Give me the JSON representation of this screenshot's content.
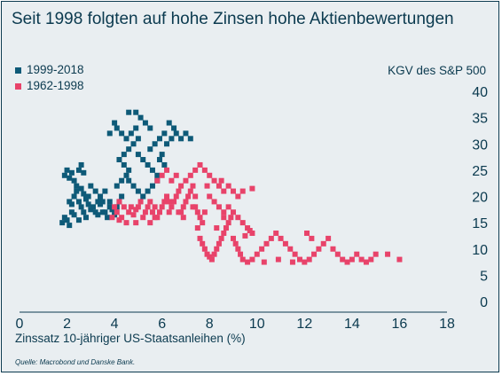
{
  "title": "Seit 1998 folgten auf hohe Zinsen hohe Aktienbewertungen",
  "source": "Quelle: Macrobond und Danske Bank.",
  "colors": {
    "series_1999_2018": "#0e5a78",
    "series_1962_1998": "#e8436a",
    "text": "#0b3a4f",
    "background": "#e9eef1"
  },
  "chart_data": {
    "type": "scatter",
    "xlabel": "Zinssatz 10-jähriger US-Staatsanleihen (%)",
    "ylabel": "KGV des S&P 500",
    "xlim": [
      0,
      18
    ],
    "ylim": [
      0,
      40
    ],
    "xticks": [
      0,
      2,
      4,
      6,
      8,
      10,
      12,
      14,
      16,
      18
    ],
    "yticks": [
      0,
      5,
      10,
      15,
      20,
      25,
      30,
      35,
      40
    ],
    "grid": false,
    "legend_position": "top-left",
    "series": [
      {
        "name": "1999-2018",
        "points": [
          [
            1.8,
            15
          ],
          [
            1.9,
            16
          ],
          [
            2.0,
            15.5
          ],
          [
            2.1,
            14.5
          ],
          [
            2.2,
            17
          ],
          [
            1.9,
            24
          ],
          [
            2.0,
            25
          ],
          [
            2.1,
            23.5
          ],
          [
            2.2,
            24.5
          ],
          [
            2.3,
            23
          ],
          [
            2.4,
            22
          ],
          [
            2.3,
            20
          ],
          [
            2.2,
            18.5
          ],
          [
            2.5,
            19
          ],
          [
            2.6,
            18
          ],
          [
            2.7,
            17
          ],
          [
            2.8,
            16
          ],
          [
            2.5,
            25
          ],
          [
            2.6,
            26
          ],
          [
            2.7,
            24.5
          ],
          [
            2.4,
            21
          ],
          [
            2.6,
            21.5
          ],
          [
            2.8,
            19.5
          ],
          [
            2.9,
            18.5
          ],
          [
            3.0,
            17.5
          ],
          [
            2.1,
            19
          ],
          [
            2.3,
            16.5
          ],
          [
            2.5,
            15.5
          ],
          [
            2.7,
            20.5
          ],
          [
            2.9,
            20
          ],
          [
            3.1,
            18
          ],
          [
            3.2,
            17
          ],
          [
            3.3,
            16.5
          ],
          [
            3.4,
            18.5
          ],
          [
            3.5,
            19
          ],
          [
            3.0,
            22
          ],
          [
            3.2,
            21
          ],
          [
            3.4,
            20
          ],
          [
            3.6,
            17
          ],
          [
            3.7,
            16
          ],
          [
            3.8,
            18
          ],
          [
            3.9,
            17.5
          ],
          [
            4.0,
            16.5
          ],
          [
            4.1,
            18
          ],
          [
            4.2,
            19
          ],
          [
            4.3,
            20
          ],
          [
            4.1,
            22
          ],
          [
            4.3,
            23
          ],
          [
            4.5,
            24
          ],
          [
            4.4,
            26
          ],
          [
            4.6,
            25
          ],
          [
            4.2,
            27
          ],
          [
            4.4,
            28
          ],
          [
            4.6,
            29
          ],
          [
            4.8,
            30
          ],
          [
            4.5,
            31
          ],
          [
            4.7,
            32
          ],
          [
            4.9,
            33
          ],
          [
            5.0,
            31
          ],
          [
            4.3,
            32
          ],
          [
            4.1,
            33
          ],
          [
            3.8,
            32
          ],
          [
            4.0,
            34
          ],
          [
            4.6,
            36
          ],
          [
            4.9,
            36
          ],
          [
            5.1,
            35
          ],
          [
            5.3,
            34
          ],
          [
            5.5,
            33
          ],
          [
            5.0,
            28
          ],
          [
            5.2,
            27
          ],
          [
            5.4,
            26
          ],
          [
            5.6,
            25
          ],
          [
            5.8,
            24
          ],
          [
            5.5,
            29
          ],
          [
            5.7,
            30
          ],
          [
            5.9,
            31
          ],
          [
            6.1,
            32
          ],
          [
            6.3,
            34
          ],
          [
            6.5,
            33
          ],
          [
            6.2,
            30
          ],
          [
            6.4,
            31
          ],
          [
            6.6,
            32
          ],
          [
            6.8,
            31
          ],
          [
            7.0,
            32
          ],
          [
            7.2,
            31
          ],
          [
            5.9,
            27
          ],
          [
            6.1,
            26
          ],
          [
            6.0,
            28
          ],
          [
            5.8,
            23
          ],
          [
            5.6,
            22
          ],
          [
            5.4,
            21
          ],
          [
            5.2,
            20
          ],
          [
            5.0,
            21
          ],
          [
            4.8,
            22
          ],
          [
            4.6,
            23
          ],
          [
            3.5,
            17
          ],
          [
            3.3,
            19
          ],
          [
            3.6,
            21
          ],
          [
            3.8,
            19
          ],
          [
            4.0,
            17.5
          ]
        ]
      },
      {
        "name": "1962-1998",
        "points": [
          [
            3.9,
            16
          ],
          [
            4.0,
            18
          ],
          [
            4.1,
            17
          ],
          [
            4.2,
            19
          ],
          [
            4.3,
            16
          ],
          [
            4.4,
            18
          ],
          [
            4.5,
            15
          ],
          [
            4.6,
            17
          ],
          [
            4.7,
            18
          ],
          [
            4.8,
            16.5
          ],
          [
            4.9,
            17.5
          ],
          [
            5.0,
            18
          ],
          [
            5.1,
            19
          ],
          [
            5.2,
            16
          ],
          [
            5.3,
            17
          ],
          [
            5.4,
            18
          ],
          [
            5.5,
            19
          ],
          [
            5.6,
            17
          ],
          [
            5.7,
            18
          ],
          [
            5.8,
            16
          ],
          [
            5.9,
            17
          ],
          [
            6.0,
            18
          ],
          [
            6.1,
            19
          ],
          [
            6.2,
            20
          ],
          [
            6.3,
            17
          ],
          [
            6.4,
            18
          ],
          [
            6.5,
            19
          ],
          [
            6.6,
            20
          ],
          [
            6.7,
            21
          ],
          [
            6.8,
            17
          ],
          [
            6.9,
            18
          ],
          [
            7.0,
            19
          ],
          [
            7.1,
            20
          ],
          [
            7.2,
            21
          ],
          [
            7.3,
            22
          ],
          [
            7.4,
            18
          ],
          [
            7.5,
            17
          ],
          [
            7.6,
            16
          ],
          [
            7.7,
            15
          ],
          [
            7.8,
            17
          ],
          [
            5.8,
            23
          ],
          [
            6.0,
            24
          ],
          [
            6.2,
            25
          ],
          [
            6.4,
            23
          ],
          [
            6.6,
            24
          ],
          [
            6.8,
            22
          ],
          [
            7.0,
            23
          ],
          [
            7.2,
            24
          ],
          [
            7.4,
            25
          ],
          [
            7.6,
            26
          ],
          [
            7.8,
            25
          ],
          [
            8.0,
            24
          ],
          [
            8.2,
            23
          ],
          [
            8.4,
            22
          ],
          [
            8.6,
            21
          ],
          [
            8.8,
            22
          ],
          [
            9.0,
            21
          ],
          [
            9.2,
            20
          ],
          [
            9.4,
            21
          ],
          [
            9.8,
            21.5
          ],
          [
            8.0,
            20
          ],
          [
            8.2,
            19
          ],
          [
            8.4,
            18
          ],
          [
            8.6,
            17
          ],
          [
            8.8,
            18
          ],
          [
            9.0,
            17
          ],
          [
            9.2,
            16
          ],
          [
            9.4,
            15
          ],
          [
            9.6,
            14
          ],
          [
            9.8,
            13
          ],
          [
            7.5,
            14
          ],
          [
            7.6,
            12
          ],
          [
            7.7,
            11
          ],
          [
            7.8,
            10
          ],
          [
            7.9,
            9
          ],
          [
            8.0,
            8.5
          ],
          [
            8.1,
            8
          ],
          [
            8.2,
            9
          ],
          [
            8.3,
            10
          ],
          [
            8.4,
            11
          ],
          [
            8.5,
            12
          ],
          [
            8.6,
            13
          ],
          [
            8.7,
            14
          ],
          [
            8.8,
            15
          ],
          [
            8.9,
            16
          ],
          [
            9.0,
            12
          ],
          [
            9.1,
            11
          ],
          [
            9.2,
            10
          ],
          [
            9.3,
            9
          ],
          [
            9.4,
            8
          ],
          [
            9.6,
            7.5
          ],
          [
            9.8,
            8
          ],
          [
            10.0,
            9
          ],
          [
            10.2,
            10
          ],
          [
            10.4,
            11
          ],
          [
            10.6,
            12
          ],
          [
            10.8,
            13
          ],
          [
            11.0,
            12
          ],
          [
            11.2,
            11
          ],
          [
            11.4,
            10
          ],
          [
            11.6,
            9
          ],
          [
            11.8,
            8
          ],
          [
            12.0,
            7.5
          ],
          [
            12.2,
            8
          ],
          [
            12.4,
            9
          ],
          [
            12.6,
            10
          ],
          [
            12.8,
            11
          ],
          [
            13.0,
            12
          ],
          [
            13.2,
            10
          ],
          [
            13.4,
            9
          ],
          [
            13.6,
            8
          ],
          [
            13.8,
            7.5
          ],
          [
            14.0,
            8
          ],
          [
            14.2,
            9
          ],
          [
            14.4,
            8
          ],
          [
            14.6,
            7.5
          ],
          [
            14.8,
            8
          ],
          [
            15.0,
            9
          ],
          [
            15.5,
            9
          ],
          [
            16.0,
            8
          ],
          [
            10.3,
            7.5
          ],
          [
            10.9,
            8
          ],
          [
            11.5,
            7.5
          ],
          [
            12.1,
            13
          ],
          [
            12.3,
            12
          ],
          [
            9.5,
            12.5
          ],
          [
            9.7,
            13.5
          ],
          [
            8.3,
            14
          ],
          [
            8.6,
            16
          ],
          [
            7.4,
            20
          ],
          [
            6.7,
            17
          ],
          [
            6.9,
            16
          ],
          [
            5.7,
            16
          ],
          [
            5.5,
            15
          ],
          [
            4.9,
            15
          ],
          [
            4.2,
            15.5
          ],
          [
            7.9,
            22
          ],
          [
            8.5,
            23
          ],
          [
            6.3,
            19
          ],
          [
            7.3,
            18
          ]
        ]
      }
    ]
  }
}
